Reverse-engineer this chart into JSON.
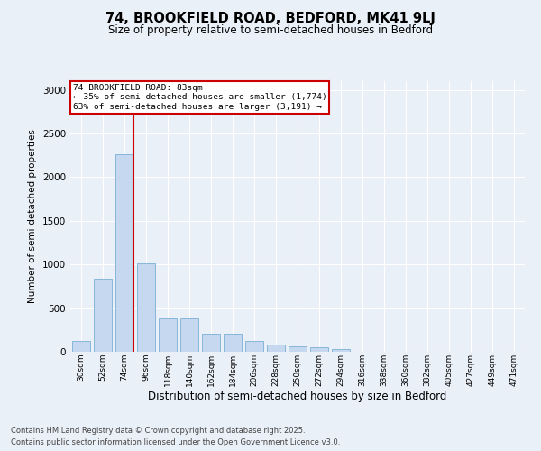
{
  "title_line1": "74, BROOKFIELD ROAD, BEDFORD, MK41 9LJ",
  "title_line2": "Size of property relative to semi-detached houses in Bedford",
  "xlabel": "Distribution of semi-detached houses by size in Bedford",
  "ylabel": "Number of semi-detached properties",
  "categories": [
    "30sqm",
    "52sqm",
    "74sqm",
    "96sqm",
    "118sqm",
    "140sqm",
    "162sqm",
    "184sqm",
    "206sqm",
    "228sqm",
    "250sqm",
    "272sqm",
    "294sqm",
    "316sqm",
    "338sqm",
    "360sqm",
    "382sqm",
    "405sqm",
    "427sqm",
    "449sqm",
    "471sqm"
  ],
  "values": [
    120,
    840,
    2260,
    1010,
    380,
    380,
    210,
    210,
    120,
    80,
    60,
    50,
    30,
    5,
    2,
    2,
    2,
    1,
    1,
    0,
    0
  ],
  "bar_color": "#c5d8f0",
  "bar_edge_color": "#7aafd4",
  "property_bin_index": 2,
  "annotation_title": "74 BROOKFIELD ROAD: 83sqm",
  "annotation_line2": "← 35% of semi-detached houses are smaller (1,774)",
  "annotation_line3": "63% of semi-detached houses are larger (3,191) →",
  "annotation_box_color": "#ffffff",
  "annotation_box_edge_color": "#cc0000",
  "vline_color": "#cc0000",
  "footer_line1": "Contains HM Land Registry data © Crown copyright and database right 2025.",
  "footer_line2": "Contains public sector information licensed under the Open Government Licence v3.0.",
  "ylim": [
    0,
    3100
  ],
  "yticks": [
    0,
    500,
    1000,
    1500,
    2000,
    2500,
    3000
  ],
  "background_color": "#eaf0f8",
  "plot_background": "#eaf0f8",
  "grid_color": "#ffffff"
}
